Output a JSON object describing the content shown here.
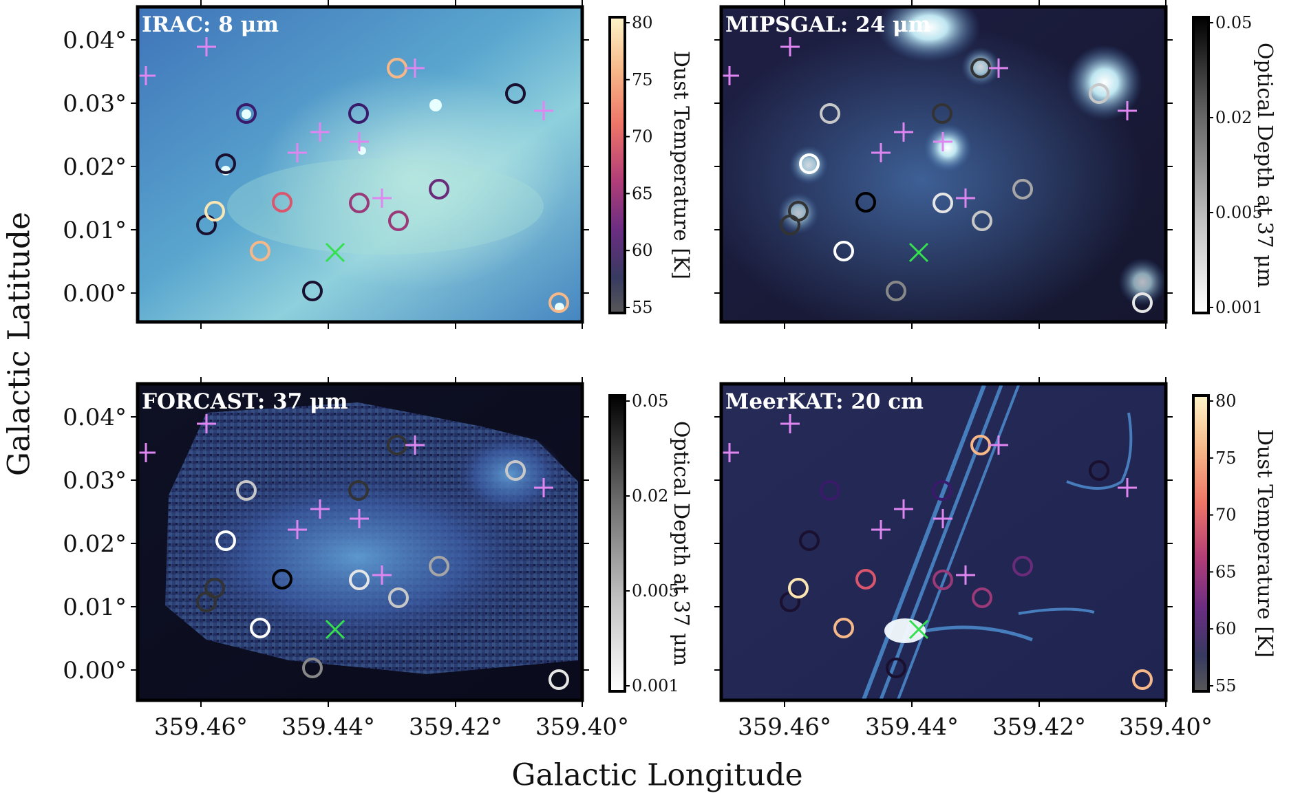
{
  "figure": {
    "xlabel": "Galactic Longitude",
    "ylabel": "Galactic Latitude",
    "x_ticks": [
      "359.46°",
      "359.44°",
      "359.42°",
      "359.40°"
    ],
    "y_ticks": [
      "0.04°",
      "0.03°",
      "0.02°",
      "0.01°",
      "0.00°"
    ]
  },
  "colors": {
    "source_ring_scale": [
      "#1a1030",
      "#3a1a6a",
      "#6a2b7a",
      "#9a3a78",
      "#d9566e",
      "#f48a68",
      "#f7b889",
      "#fbe5b3"
    ],
    "magenta_cross": "#e086f0",
    "green_x": "#34e04e"
  },
  "panels": [
    {
      "title": "IRAC: 8 μm",
      "background": "cyan-blue dust emission",
      "colorbar": {
        "label": "Dust Temperature [K]",
        "ticks": [
          "80",
          "75",
          "70",
          "65",
          "60",
          "55"
        ],
        "gradient": [
          "#fdf4c8",
          "#f7b889",
          "#ee7668",
          "#b23e78",
          "#6a2d82",
          "#373a60",
          "#585858"
        ]
      }
    },
    {
      "title": "MIPSGAL: 24 μm",
      "background": "dark navy with bright compact sources",
      "colorbar": {
        "label": "Optical Depth at 37 μm",
        "ticks": [
          "0.05",
          "0.02",
          "0.005",
          "0.001"
        ],
        "gradient": [
          "#000000",
          "#6a6a6a",
          "#bfbfbf",
          "#ffffff"
        ]
      }
    },
    {
      "title": "FORCAST: 37 μm",
      "background": "noisy blue diffuse emission",
      "colorbar": {
        "label": "Optical Depth at 37 μm",
        "ticks": [
          "0.05",
          "0.02",
          "0.005",
          "0.001"
        ],
        "gradient": [
          "#000000",
          "#6a6a6a",
          "#bfbfbf",
          "#ffffff"
        ]
      }
    },
    {
      "title": "MeerKAT: 20 cm",
      "background": "dark blue with radio filaments",
      "colorbar": {
        "label": "Dust Temperature [K]",
        "ticks": [
          "80",
          "75",
          "70",
          "65",
          "60",
          "55"
        ],
        "gradient": [
          "#fdf4c8",
          "#f7b889",
          "#ee7668",
          "#b23e78",
          "#6a2d82",
          "#373a60",
          "#585858"
        ]
      }
    }
  ]
}
